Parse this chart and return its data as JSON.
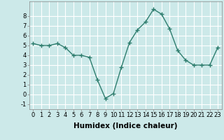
{
  "x": [
    0,
    1,
    2,
    3,
    4,
    5,
    6,
    7,
    8,
    9,
    10,
    11,
    12,
    13,
    14,
    15,
    16,
    17,
    18,
    19,
    20,
    21,
    22,
    23
  ],
  "y": [
    5.2,
    5.0,
    5.0,
    5.2,
    4.8,
    4.0,
    4.0,
    3.8,
    1.5,
    -0.4,
    0.1,
    2.8,
    5.3,
    6.6,
    7.4,
    8.7,
    8.2,
    6.7,
    4.5,
    3.5,
    3.0,
    3.0,
    3.0,
    4.8
  ],
  "xlabel": "Humidex (Indice chaleur)",
  "ylim": [
    -1.5,
    9.5
  ],
  "xlim": [
    -0.5,
    23.5
  ],
  "yticks": [
    -1,
    0,
    1,
    2,
    3,
    4,
    5,
    6,
    7,
    8
  ],
  "xticks": [
    0,
    1,
    2,
    3,
    4,
    5,
    6,
    7,
    8,
    9,
    10,
    11,
    12,
    13,
    14,
    15,
    16,
    17,
    18,
    19,
    20,
    21,
    22,
    23
  ],
  "line_color": "#2e7d6e",
  "marker": "+",
  "marker_size": 4,
  "bg_color": "#cce9e9",
  "grid_color": "#ffffff",
  "tick_fontsize": 6,
  "label_fontsize": 7.5
}
